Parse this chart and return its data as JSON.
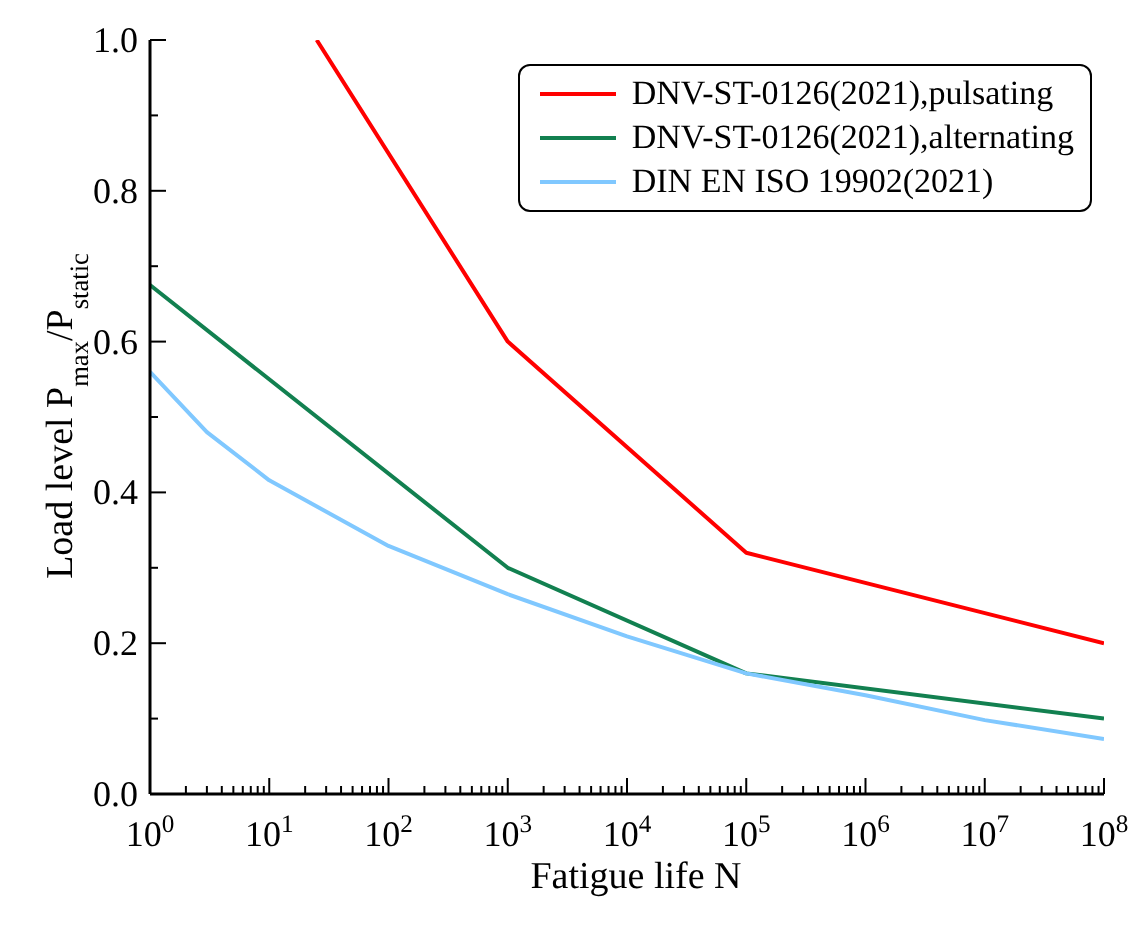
{
  "chart_data": {
    "type": "line",
    "xlabel": "Fatigue life N",
    "ylabel": "Load level P$_{max}$/P$_{static}$",
    "log": "x",
    "grid": false,
    "legend": "top right",
    "marker": "none",
    "line_style": "solid",
    "xlim": [
      1,
      100000000
    ],
    "ylim": [
      0,
      1.0
    ],
    "xticks": [
      {
        "value": 1,
        "label": "10$^{0}$"
      },
      {
        "value": 10,
        "label": "10$^{1}$"
      },
      {
        "value": 100,
        "label": "10$^{2}$"
      },
      {
        "value": 1000,
        "label": "10$^{3}$"
      },
      {
        "value": 10000,
        "label": "10$^{4}$"
      },
      {
        "value": 100000,
        "label": "10$^{5}$"
      },
      {
        "value": 1000000,
        "label": "10$^{6}$"
      },
      {
        "value": 10000000,
        "label": "10$^{7}$"
      },
      {
        "value": 100000000,
        "label": "10$^{8}$"
      },
      {
        "value": 2,
        "label": null
      },
      {
        "value": 3,
        "label": null
      },
      {
        "value": 4,
        "label": null
      },
      {
        "value": 5,
        "label": null
      },
      {
        "value": 6,
        "label": null
      },
      {
        "value": 7,
        "label": null
      },
      {
        "value": 8,
        "label": null
      },
      {
        "value": 9,
        "label": null
      },
      {
        "value": 20,
        "label": null
      },
      {
        "value": 30,
        "label": null
      },
      {
        "value": 40,
        "label": null
      },
      {
        "value": 50,
        "label": null
      },
      {
        "value": 60,
        "label": null
      },
      {
        "value": 70,
        "label": null
      },
      {
        "value": 80,
        "label": null
      },
      {
        "value": 90,
        "label": null
      },
      {
        "value": 200,
        "label": null
      },
      {
        "value": 300,
        "label": null
      },
      {
        "value": 400,
        "label": null
      },
      {
        "value": 500,
        "label": null
      },
      {
        "value": 600,
        "label": null
      },
      {
        "value": 700,
        "label": null
      },
      {
        "value": 800,
        "label": null
      },
      {
        "value": 900,
        "label": null
      },
      {
        "value": 2000,
        "label": null
      },
      {
        "value": 3000,
        "label": null
      },
      {
        "value": 4000,
        "label": null
      },
      {
        "value": 5000,
        "label": null
      },
      {
        "value": 6000,
        "label": null
      },
      {
        "value": 7000,
        "label": null
      },
      {
        "value": 8000,
        "label": null
      },
      {
        "value": 9000,
        "label": null
      },
      {
        "value": 20000,
        "label": null
      },
      {
        "value": 30000,
        "label": null
      },
      {
        "value": 40000,
        "label": null
      },
      {
        "value": 50000,
        "label": null
      },
      {
        "value": 60000,
        "label": null
      },
      {
        "value": 70000,
        "label": null
      },
      {
        "value": 80000,
        "label": null
      },
      {
        "value": 90000,
        "label": null
      },
      {
        "value": 200000,
        "label": null
      },
      {
        "value": 300000,
        "label": null
      },
      {
        "value": 400000,
        "label": null
      },
      {
        "value": 500000,
        "label": null
      },
      {
        "value": 600000,
        "label": null
      },
      {
        "value": 700000,
        "label": null
      },
      {
        "value": 800000,
        "label": null
      },
      {
        "value": 900000,
        "label": null
      },
      {
        "value": 2000000,
        "label": null
      },
      {
        "value": 3000000,
        "label": null
      },
      {
        "value": 4000000,
        "label": null
      },
      {
        "value": 5000000,
        "label": null
      },
      {
        "value": 6000000,
        "label": null
      },
      {
        "value": 7000000,
        "label": null
      },
      {
        "value": 8000000,
        "label": null
      },
      {
        "value": 9000000,
        "label": null
      },
      {
        "value": 20000000,
        "label": null
      },
      {
        "value": 30000000,
        "label": null
      },
      {
        "value": 40000000,
        "label": null
      },
      {
        "value": 50000000,
        "label": null
      },
      {
        "value": 60000000,
        "label": null
      },
      {
        "value": 70000000,
        "label": null
      },
      {
        "value": 80000000,
        "label": null
      },
      {
        "value": 90000000,
        "label": null
      }
    ],
    "yticks": [
      {
        "value": 0,
        "label": "0.0"
      },
      {
        "value": 0.1,
        "label": null
      },
      {
        "value": 0.2,
        "label": "0.2"
      },
      {
        "value": 0.3,
        "label": null
      },
      {
        "value": 0.4,
        "label": "0.4"
      },
      {
        "value": 0.5,
        "label": null
      },
      {
        "value": 0.6,
        "label": "0.6"
      },
      {
        "value": 0.7,
        "label": null
      },
      {
        "value": 0.8,
        "label": "0.8"
      },
      {
        "value": 0.9,
        "label": null
      },
      {
        "value": 1.0,
        "label": "1.0"
      }
    ],
    "series": [
      {
        "name": "DNV-ST-0126(2021),pulsating",
        "color": "#ff0000",
        "x": [
          25,
          1000,
          100000,
          100000000
        ],
        "values": [
          1.0,
          0.6,
          0.32,
          0.2
        ]
      },
      {
        "name": "DNV-ST-0126(2021),alternating",
        "color": "#128050",
        "x": [
          1,
          1000,
          100000,
          100000000
        ],
        "values": [
          0.675,
          0.3,
          0.16,
          0.1
        ]
      },
      {
        "name": "DIN EN ISO 19902(2021)",
        "color": "#80c8ff",
        "x": [
          1,
          3,
          10,
          100,
          1000,
          10000,
          100000,
          1000000,
          10000000,
          100000000
        ],
        "values": [
          0.56,
          0.48,
          0.416,
          0.329,
          0.265,
          0.209,
          0.16,
          0.131,
          0.098,
          0.073
        ]
      }
    ]
  }
}
